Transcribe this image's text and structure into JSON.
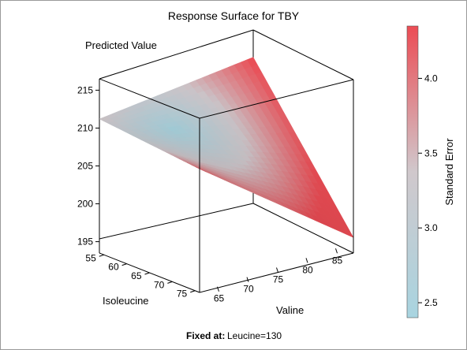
{
  "chart_data": {
    "type": "surface",
    "title": "Response Surface for TBY",
    "z_label": "Predicted Value",
    "x_label": "Valine",
    "y_label": "Isoleucine",
    "z_ticks": [
      "215",
      "210",
      "205",
      "200",
      "195"
    ],
    "x_ticks": [
      "65",
      "70",
      "75",
      "80",
      "85"
    ],
    "y_ticks": [
      "55",
      "60",
      "65",
      "70",
      "75"
    ],
    "z_range": [
      193.5,
      216.5
    ],
    "x_range": [
      62,
      88
    ],
    "y_range": [
      54,
      76
    ],
    "surface_corners": [
      {
        "valine": 62,
        "isoleucine": 54,
        "predicted": 211.2
      },
      {
        "valine": 88,
        "isoleucine": 54,
        "predicted": 212.8
      },
      {
        "valine": 62,
        "isoleucine": 76,
        "predicted": 209.8
      },
      {
        "valine": 88,
        "isoleucine": 76,
        "predicted": 194.2
      }
    ],
    "colorbar": {
      "label": "Standard Error",
      "ticks": [
        "4.0",
        "3.5",
        "3.0",
        "2.5"
      ],
      "range": [
        2.4,
        4.35
      ],
      "color_low": "#a8d4e0",
      "color_mid": "#d0c8cc",
      "color_high": "#ec4c54"
    },
    "fixed_label": "Fixed at:",
    "fixed_value": "Leucine=130"
  }
}
